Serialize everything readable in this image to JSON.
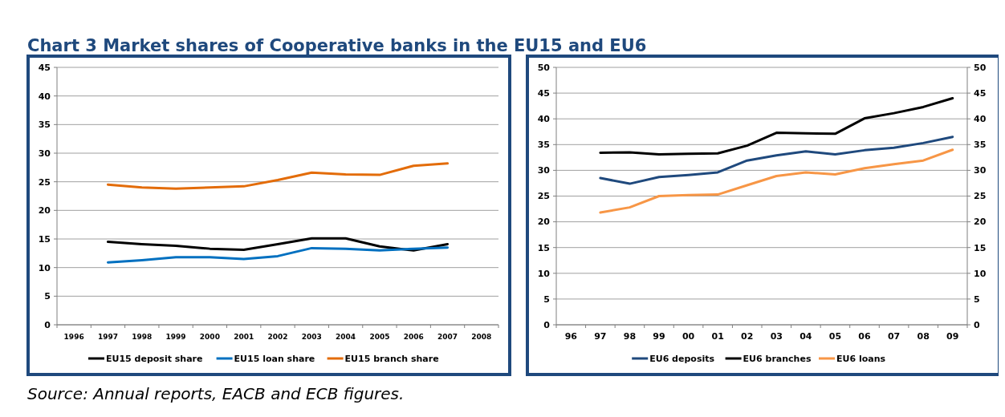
{
  "chart_data": [
    {
      "type": "line",
      "title": "Chart 3 Market shares of Cooperative banks in the EU15 and EU6",
      "annotations": [
        "Source: Annual reports, EACB and ECB figures."
      ],
      "categories": [
        "1996",
        "1997",
        "1998",
        "1999",
        "2000",
        "2001",
        "2002",
        "2003",
        "2004",
        "2005",
        "2006",
        "2007",
        "2008"
      ],
      "ylim": [
        0,
        45
      ],
      "yticks": [
        0,
        5,
        10,
        15,
        20,
        25,
        30,
        35,
        40,
        45
      ],
      "grid": "y",
      "legend": "bottom",
      "marker": "none",
      "series": [
        {
          "name": "EU15 deposit share",
          "color": "#000000",
          "values": [
            null,
            14.5,
            14.1,
            13.8,
            13.3,
            13.1,
            14.1,
            15.1,
            15.1,
            13.7,
            13.0,
            14.1,
            null
          ]
        },
        {
          "name": "EU15 loan share",
          "color": "#0070c0",
          "values": [
            null,
            10.9,
            11.3,
            11.8,
            11.8,
            11.5,
            12.0,
            13.4,
            13.3,
            13.0,
            13.3,
            13.5,
            null
          ]
        },
        {
          "name": "EU15 branch share",
          "color": "#e36c09",
          "values": [
            null,
            24.5,
            24.0,
            23.8,
            24.0,
            24.2,
            25.3,
            26.6,
            26.3,
            26.2,
            27.8,
            28.2,
            null
          ]
        }
      ]
    },
    {
      "type": "line",
      "categories": [
        "96",
        "97",
        "98",
        "99",
        "00",
        "01",
        "02",
        "03",
        "04",
        "05",
        "06",
        "07",
        "08",
        "09"
      ],
      "ylim": [
        0,
        50
      ],
      "yticks": [
        0,
        5,
        10,
        15,
        20,
        25,
        30,
        35,
        40,
        45,
        50
      ],
      "y2lim": [
        0,
        50
      ],
      "y2ticks": [
        0,
        5,
        10,
        15,
        20,
        25,
        30,
        35,
        40,
        45,
        50
      ],
      "grid": "y",
      "legend": "bottom",
      "marker": "none",
      "series": [
        {
          "name": "EU6 deposits",
          "color": "#1f497d",
          "values": [
            null,
            28.5,
            27.4,
            28.7,
            29.1,
            29.6,
            31.9,
            32.9,
            33.7,
            33.1,
            33.9,
            34.4,
            35.3,
            36.5
          ]
        },
        {
          "name": "EU6 branches",
          "color": "#000000",
          "values": [
            null,
            33.4,
            33.5,
            33.1,
            33.2,
            33.3,
            34.8,
            37.3,
            37.2,
            37.1,
            40.1,
            41.1,
            42.3,
            44.0
          ]
        },
        {
          "name": "EU6 loans",
          "color": "#f79646",
          "values": [
            null,
            21.8,
            22.8,
            25.0,
            25.2,
            25.3,
            27.1,
            28.9,
            29.6,
            29.2,
            30.4,
            31.2,
            31.9,
            34.0
          ]
        }
      ]
    }
  ]
}
